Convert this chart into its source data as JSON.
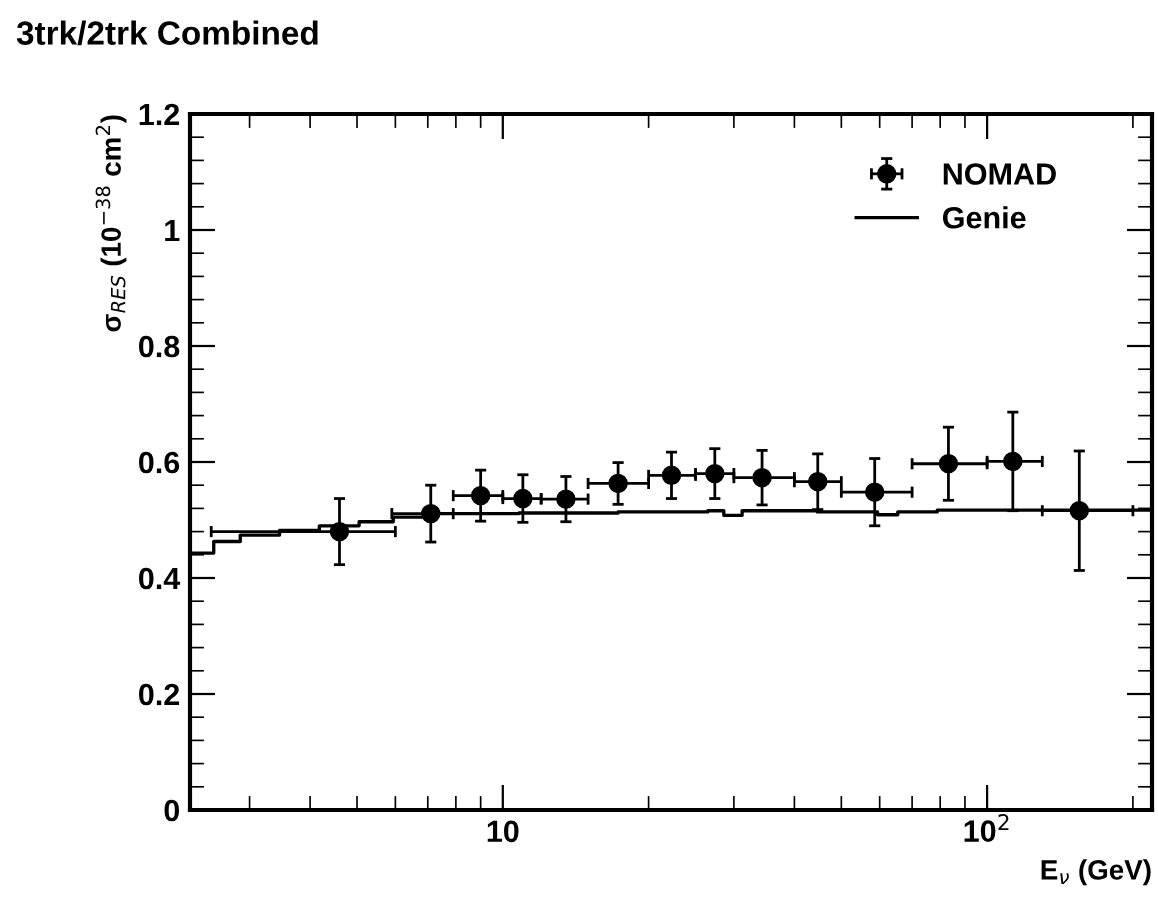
{
  "chart_data": {
    "type": "scatter",
    "title": "3trk/2trk Combined",
    "xlabel": "E$_{ν}$ (GeV)",
    "ylabel": "σ$_{RES}$ (10$^{−38}$ cm$^{2}$)",
    "log": "x",
    "xlim": [
      2.26,
      219
    ],
    "ylim": [
      0,
      1.2
    ],
    "xticks": [
      {
        "value": 10,
        "label": "10"
      },
      {
        "value": 100,
        "label": "10$^{2}$"
      }
    ],
    "yticks": [
      0,
      0.2,
      0.4,
      0.6,
      0.8,
      1,
      1.2
    ],
    "grid": false,
    "legend": "top right",
    "series": [
      {
        "name": "NOMAD",
        "color": "#000000",
        "marker": "circle",
        "x": [
          4.6,
          7.1,
          9.0,
          11.0,
          13.5,
          17.3,
          22.3,
          27.4,
          34.3,
          44.7,
          58.6,
          83.2,
          113,
          155
        ],
        "values": [
          0.48,
          0.511,
          0.542,
          0.537,
          0.536,
          0.563,
          0.577,
          0.58,
          0.573,
          0.566,
          0.548,
          0.597,
          0.601,
          0.516
        ],
        "errors": [
          0.057,
          0.049,
          0.044,
          0.041,
          0.039,
          0.036,
          0.04,
          0.043,
          0.047,
          0.048,
          0.058,
          0.063,
          0.085,
          0.103
        ],
        "xerrors": [
          [
            2.5,
            6.0
          ],
          [
            5.9,
            7.9
          ],
          [
            7.9,
            10
          ],
          [
            10,
            12
          ],
          [
            12,
            15
          ],
          [
            15,
            20
          ],
          [
            20,
            25
          ],
          [
            25,
            30
          ],
          [
            30,
            40
          ],
          [
            40,
            50
          ],
          [
            50,
            70
          ],
          [
            70,
            100
          ],
          [
            100,
            130
          ],
          [
            130,
            200
          ]
        ]
      },
      {
        "name": "Genie",
        "type": "step",
        "color": "#000000",
        "x": [
          2.26,
          2.26,
          2.53,
          2.87,
          3.46,
          4.18,
          5.05,
          5.94,
          7.04,
          10.8,
          17.3,
          26.5,
          28.6,
          31.2,
          44.6,
          59.4,
          65.4,
          78.9,
          219
        ],
        "values": [
          0,
          0.443,
          0.463,
          0.474,
          0.482,
          0.49,
          0.497,
          0.505,
          0.511,
          0.512,
          0.514,
          0.516,
          0.508,
          0.516,
          0.514,
          0.509,
          0.514,
          0.517,
          0.517
        ]
      }
    ]
  }
}
